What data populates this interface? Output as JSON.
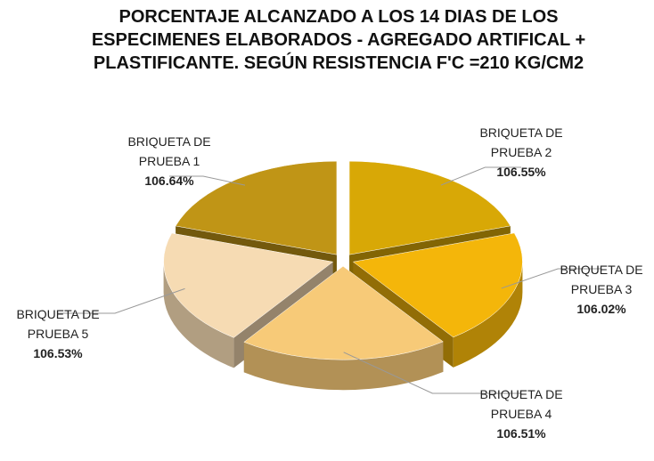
{
  "chart_data": {
    "type": "pie",
    "title": "PORCENTAJE ALCANZADO A LOS 14 DIAS DE LOS ESPECIMENES ELABORADOS - AGREGADO ARTIFICAL + PLASTIFICANTE. SEGÚN RESISTENCIA F'C =210 KG/CM2",
    "categories": [
      "BRIQUETA DE PRUEBA 1",
      "BRIQUETA DE PRUEBA 2",
      "BRIQUETA DE PRUEBA 3",
      "BRIQUETA DE PRUEBA 4",
      "BRIQUETA DE PRUEBA 5"
    ],
    "values": [
      106.64,
      106.55,
      106.02,
      106.51,
      106.53
    ],
    "value_labels": [
      "106.64%",
      "106.55%",
      "106.02%",
      "106.51%",
      "106.53%"
    ],
    "colors": [
      "#c09516",
      "#d8a806",
      "#f4b60a",
      "#f7ca78",
      "#f6dbb3"
    ]
  }
}
